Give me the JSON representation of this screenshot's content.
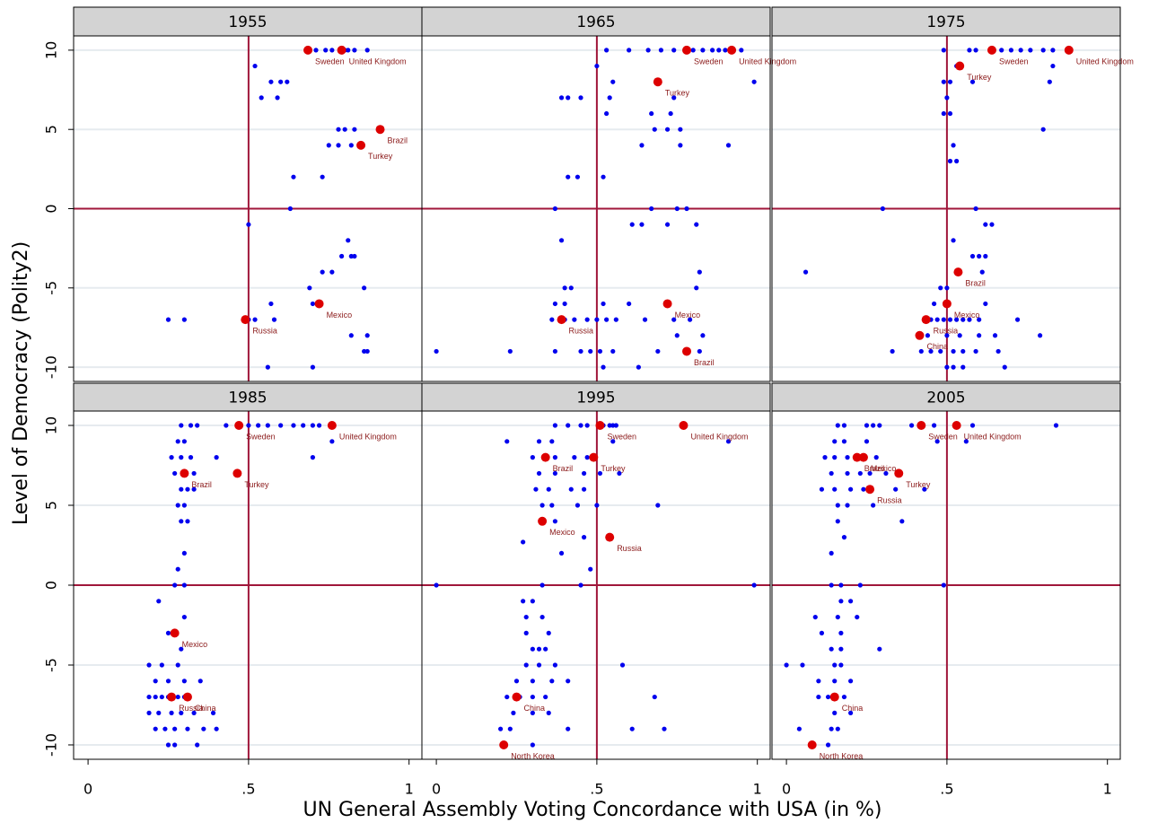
{
  "chart_data": {
    "type": "scatter",
    "xlabel": "UN General Assembly Voting Concordance with USA (in %)",
    "ylabel": "Level of Democracy (Polity2)",
    "xlim": [
      -0.045,
      1.04
    ],
    "ylim": [
      -10.9,
      10.9
    ],
    "xticks": [
      0,
      {
        "value": 0.5,
        "label": ".5"
      },
      1
    ],
    "yticks": [
      -10,
      -5,
      0,
      5,
      10
    ],
    "grid": true,
    "vline": 0.5,
    "hline": 0,
    "point_color": "#0000ee",
    "highlight_color": "#dd0000",
    "label_color": "#8b1a1a",
    "reference_line_color": "#a0163a",
    "panels": [
      {
        "title": "1955",
        "x": [
          0.52,
          0.54,
          0.57,
          0.59,
          0.6,
          0.62,
          0.64,
          0.71,
          0.74,
          0.76,
          0.8,
          0.81,
          0.83,
          0.87,
          0.78,
          0.8,
          0.83,
          0.75,
          0.78,
          0.82,
          0.73,
          0.63,
          0.5,
          0.81,
          0.79,
          0.82,
          0.83,
          0.76,
          0.73,
          0.86,
          0.69,
          0.7,
          0.72,
          0.57,
          0.25,
          0.3,
          0.5,
          0.52,
          0.58,
          0.82,
          0.87,
          0.86,
          0.87,
          0.56,
          0.7
        ],
        "y": [
          9,
          7,
          8,
          7,
          8,
          8,
          2,
          10,
          10,
          10,
          10,
          10,
          10,
          10,
          5,
          5,
          5,
          4,
          4,
          4,
          2,
          0,
          -1,
          -2,
          -3,
          -3,
          -3,
          -4,
          -4,
          -5,
          -5,
          -6,
          -6,
          -6,
          -7,
          -7,
          -7,
          -7,
          -7,
          -8,
          -8,
          -9,
          -9,
          -10,
          -10
        ],
        "highlight": {
          "names": [
            "Sweden",
            "United Kingdom",
            "Brazil",
            "Turkey",
            "Mexico",
            "Russia"
          ],
          "x": [
            0.685,
            0.79,
            0.91,
            0.85,
            0.72,
            0.49
          ],
          "y": [
            10,
            10,
            5,
            4,
            -6,
            -7
          ]
        }
      },
      {
        "title": "1965",
        "x": [
          0.53,
          0.6,
          0.66,
          0.7,
          0.74,
          0.8,
          0.83,
          0.86,
          0.88,
          0.9,
          0.95,
          0.5,
          0.55,
          0.99,
          0.39,
          0.41,
          0.45,
          0.74,
          0.54,
          0.53,
          0.67,
          0.73,
          0.68,
          0.72,
          0.76,
          0.64,
          0.76,
          0.91,
          0.41,
          0.44,
          0.52,
          0.37,
          0.67,
          0.75,
          0.78,
          0.61,
          0.64,
          0.72,
          0.81,
          0.39,
          0.82,
          0.4,
          0.42,
          0.81,
          0.37,
          0.4,
          0.52,
          0.6,
          0.36,
          0.4,
          0.43,
          0.47,
          0.5,
          0.53,
          0.56,
          0.65,
          0.74,
          0.79,
          0.75,
          0.83,
          0.0,
          0.23,
          0.37,
          0.45,
          0.48,
          0.51,
          0.55,
          0.69,
          0.82,
          0.52,
          0.63
        ],
        "y": [
          10,
          10,
          10,
          10,
          10,
          10,
          10,
          10,
          10,
          10,
          10,
          9,
          8,
          8,
          7,
          7,
          7,
          7,
          7,
          6,
          6,
          6,
          5,
          5,
          5,
          4,
          4,
          4,
          2,
          2,
          2,
          0,
          0,
          0,
          0,
          -1,
          -1,
          -1,
          -1,
          -2,
          -4,
          -5,
          -5,
          -5,
          -6,
          -6,
          -6,
          -6,
          -7,
          -7,
          -7,
          -7,
          -7,
          -7,
          -7,
          -7,
          -7,
          -7,
          -8,
          -8,
          -9,
          -9,
          -9,
          -9,
          -9,
          -9,
          -9,
          -9,
          -9,
          -10,
          -10
        ],
        "highlight": {
          "names": [
            "Sweden",
            "United Kingdom",
            "Turkey",
            "Mexico",
            "Russia",
            "Brazil"
          ],
          "x": [
            0.78,
            0.92,
            0.69,
            0.72,
            0.39,
            0.78
          ],
          "y": [
            10,
            10,
            8,
            -6,
            -7,
            -9
          ]
        }
      },
      {
        "title": "1975",
        "x": [
          0.49,
          0.57,
          0.59,
          0.67,
          0.7,
          0.73,
          0.76,
          0.8,
          0.83,
          0.53,
          0.51,
          0.49,
          0.58,
          0.82,
          0.83,
          0.5,
          0.49,
          0.51,
          0.8,
          0.52,
          0.51,
          0.53,
          0.3,
          0.59,
          0.52,
          0.62,
          0.64,
          0.58,
          0.6,
          0.62,
          0.06,
          0.61,
          0.48,
          0.5,
          0.62,
          0.46,
          0.45,
          0.47,
          0.49,
          0.51,
          0.53,
          0.55,
          0.57,
          0.6,
          0.72,
          0.44,
          0.5,
          0.54,
          0.6,
          0.65,
          0.79,
          0.33,
          0.42,
          0.45,
          0.48,
          0.52,
          0.55,
          0.59,
          0.66,
          0.5,
          0.52,
          0.55,
          0.68
        ],
        "y": [
          10,
          10,
          10,
          10,
          10,
          10,
          10,
          10,
          10,
          9,
          8,
          8,
          8,
          8,
          9,
          7,
          6,
          6,
          5,
          4,
          3,
          3,
          0,
          0,
          -2,
          -1,
          -1,
          -3,
          -3,
          -3,
          -4,
          -4,
          -5,
          -5,
          -6,
          -6,
          -7,
          -7,
          -7,
          -7,
          -7,
          -7,
          -7,
          -7,
          -7,
          -8,
          -8,
          -8,
          -8,
          -8,
          -8,
          -9,
          -9,
          -9,
          -9,
          -9,
          -9,
          -9,
          -9,
          -10,
          -10,
          -10,
          -10
        ],
        "highlight": {
          "names": [
            "Sweden",
            "United Kingdom",
            "Turkey",
            "Brazil",
            "Mexico",
            "Russia",
            "China"
          ],
          "x": [
            0.64,
            0.88,
            0.54,
            0.535,
            0.5,
            0.435,
            0.415
          ],
          "y": [
            10,
            10,
            9,
            -4,
            -6,
            -7,
            -8
          ]
        }
      },
      {
        "title": "1985",
        "x": [
          0.34,
          0.32,
          0.29,
          0.43,
          0.5,
          0.53,
          0.56,
          0.6,
          0.64,
          0.67,
          0.7,
          0.72,
          0.76,
          0.28,
          0.3,
          0.26,
          0.29,
          0.32,
          0.4,
          0.7,
          0.27,
          0.33,
          0.29,
          0.31,
          0.33,
          0.28,
          0.3,
          0.29,
          0.31,
          0.3,
          0.28,
          0.27,
          0.3,
          0.22,
          0.3,
          0.25,
          0.29,
          0.19,
          0.23,
          0.28,
          0.21,
          0.25,
          0.3,
          0.35,
          0.19,
          0.21,
          0.23,
          0.25,
          0.28,
          0.3,
          0.19,
          0.22,
          0.26,
          0.29,
          0.33,
          0.39,
          0.21,
          0.24,
          0.27,
          0.31,
          0.36,
          0.4,
          0.25,
          0.27,
          0.34
        ],
        "y": [
          10,
          10,
          10,
          10,
          10,
          10,
          10,
          10,
          10,
          10,
          10,
          10,
          9,
          9,
          9,
          8,
          8,
          8,
          8,
          8,
          7,
          7,
          6,
          6,
          6,
          5,
          5,
          4,
          4,
          2,
          1,
          0,
          0,
          -1,
          -2,
          -3,
          -4,
          -5,
          -5,
          -5,
          -6,
          -6,
          -6,
          -6,
          -7,
          -7,
          -7,
          -7,
          -7,
          -7,
          -8,
          -8,
          -8,
          -8,
          -8,
          -8,
          -9,
          -9,
          -9,
          -9,
          -9,
          -9,
          -10,
          -10,
          -10
        ],
        "highlight": {
          "names": [
            "Sweden",
            "United Kingdom",
            "Brazil",
            "Turkey",
            "Mexico",
            "Russia",
            "China"
          ],
          "x": [
            0.47,
            0.76,
            0.3,
            0.465,
            0.27,
            0.26,
            0.31
          ],
          "y": [
            10,
            10,
            7,
            7,
            -3,
            -7,
            -7
          ]
        }
      },
      {
        "title": "1995",
        "x": [
          0.47,
          0.52,
          0.54,
          0.55,
          0.56,
          0.37,
          0.41,
          0.45,
          0.22,
          0.32,
          0.36,
          0.55,
          0.91,
          0.3,
          0.37,
          0.43,
          0.47,
          0.32,
          0.37,
          0.46,
          0.51,
          0.57,
          0.31,
          0.35,
          0.42,
          0.46,
          0.33,
          0.36,
          0.44,
          0.5,
          0.69,
          0.37,
          0.46,
          0.27,
          0.39,
          0.48,
          0.0,
          0.33,
          0.45,
          0.99,
          0.27,
          0.3,
          0.28,
          0.33,
          0.28,
          0.35,
          0.3,
          0.32,
          0.34,
          0.28,
          0.32,
          0.37,
          0.58,
          0.25,
          0.3,
          0.36,
          0.41,
          0.22,
          0.26,
          0.3,
          0.34,
          0.68,
          0.24,
          0.3,
          0.35,
          0.2,
          0.23,
          0.41,
          0.61,
          0.71,
          0.3
        ],
        "y": [
          10,
          10,
          10,
          10,
          10,
          10,
          10,
          10,
          9,
          9,
          9,
          9,
          9,
          8,
          8,
          8,
          8,
          7,
          7,
          7,
          7,
          7,
          6,
          6,
          6,
          6,
          5,
          5,
          5,
          5,
          5,
          4,
          3,
          2.7,
          2,
          1,
          0,
          0,
          0,
          0,
          -1,
          -1,
          -2,
          -2,
          -3,
          -3,
          -4,
          -4,
          -4,
          -5,
          -5,
          -5,
          -5,
          -6,
          -6,
          -6,
          -6,
          -7,
          -7,
          -7,
          -7,
          -7,
          -8,
          -8,
          -8,
          -9,
          -9,
          -9,
          -9,
          -9,
          -10
        ],
        "highlight": {
          "names": [
            "Sweden",
            "United Kingdom",
            "Brazil",
            "Turkey",
            "Mexico",
            "Russia",
            "China",
            "North Korea"
          ],
          "x": [
            0.51,
            0.77,
            0.34,
            0.49,
            0.33,
            0.54,
            0.25,
            0.21
          ],
          "y": [
            10,
            10,
            8,
            8,
            4,
            3,
            -7,
            -10
          ]
        }
      },
      {
        "title": "2005",
        "x": [
          0.16,
          0.18,
          0.25,
          0.27,
          0.29,
          0.39,
          0.46,
          0.58,
          0.84,
          0.15,
          0.18,
          0.25,
          0.47,
          0.56,
          0.12,
          0.15,
          0.19,
          0.28,
          0.14,
          0.19,
          0.23,
          0.26,
          0.31,
          0.11,
          0.15,
          0.2,
          0.24,
          0.34,
          0.43,
          0.16,
          0.19,
          0.27,
          0.16,
          0.36,
          0.14,
          0.18,
          0.14,
          0.17,
          0.23,
          0.49,
          0.17,
          0.2,
          0.09,
          0.16,
          0.22,
          0.11,
          0.17,
          0.14,
          0.17,
          0.29,
          0.0,
          0.05,
          0.15,
          0.17,
          0.1,
          0.15,
          0.2,
          0.1,
          0.13,
          0.18,
          0.15,
          0.2,
          0.04,
          0.14,
          0.16,
          0.13
        ],
        "y": [
          10,
          10,
          10,
          10,
          10,
          10,
          10,
          10,
          10,
          9,
          9,
          9,
          9,
          9,
          8,
          8,
          8,
          8,
          7,
          7,
          7,
          7,
          7,
          6,
          6,
          6,
          6,
          6,
          6,
          5,
          5,
          5,
          4,
          4,
          2,
          3,
          0,
          0,
          0,
          0,
          -1,
          -1,
          -2,
          -2,
          -2,
          -3,
          -3,
          -4,
          -4,
          -4,
          -5,
          -5,
          -5,
          -5,
          -6,
          -6,
          -6,
          -7,
          -7,
          -7,
          -8,
          -8,
          -9,
          -9,
          -9,
          -10
        ],
        "highlight": {
          "names": [
            "Sweden",
            "United Kingdom",
            "Brazil",
            "Mexico",
            "Turkey",
            "Russia",
            "China",
            "North Korea"
          ],
          "x": [
            0.42,
            0.53,
            0.22,
            0.24,
            0.35,
            0.26,
            0.15,
            0.08
          ],
          "y": [
            10,
            10,
            8,
            8,
            7,
            6,
            -7,
            -10
          ]
        }
      }
    ]
  }
}
